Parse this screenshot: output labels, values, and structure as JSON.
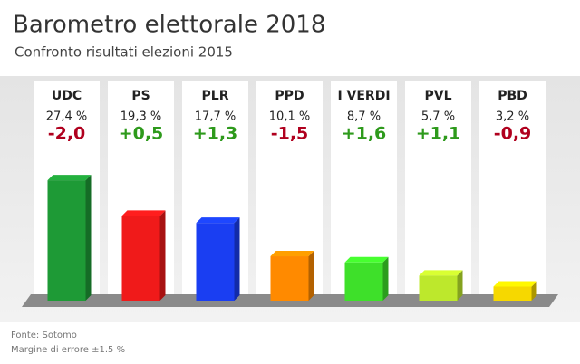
{
  "chart_data": {
    "type": "bar3d",
    "title": "Barometro elettorale 2018",
    "subtitle": "Confronto risultati elezioni 2015",
    "categories": [
      "UDC",
      "PS",
      "PLR",
      "PPD",
      "I VERDI",
      "PVL",
      "PBD"
    ],
    "values": [
      27.4,
      19.3,
      17.7,
      10.1,
      8.7,
      5.7,
      3.2
    ],
    "value_labels": [
      "27,4 %",
      "19,3 %",
      "17,7 %",
      "10,1 %",
      "8,7 %",
      "5,7 %",
      "3,2 %"
    ],
    "colors": [
      "#1e9a36",
      "#f01a1a",
      "#1a3ef2",
      "#ff8a00",
      "#3ee02a",
      "#bde82c",
      "#f6d800"
    ],
    "changes": {
      "values": [
        -2.0,
        0.5,
        1.3,
        -1.5,
        1.6,
        1.1,
        -0.9
      ],
      "value_labels": [
        "-2,0",
        "+0,5",
        "+1,3",
        "-1,5",
        "+1,6",
        "+1,1",
        "-0,9"
      ]
    },
    "source": "Fonte:  Sotomo",
    "note": "Margine di errore ±1.5 %"
  }
}
